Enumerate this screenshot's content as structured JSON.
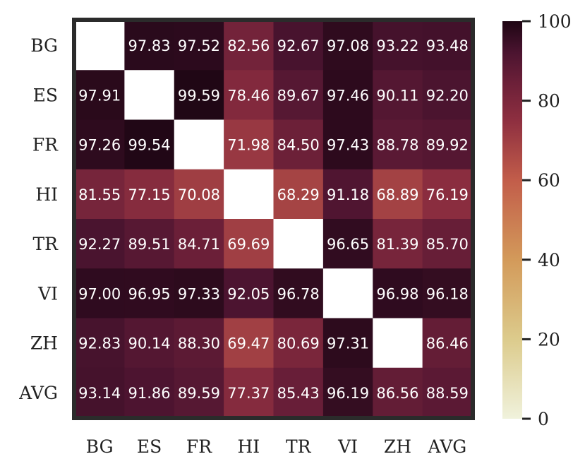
{
  "chart_data": {
    "type": "heatmap",
    "rows": [
      "BG",
      "ES",
      "FR",
      "HI",
      "TR",
      "VI",
      "ZH",
      "AVG"
    ],
    "columns": [
      "BG",
      "ES",
      "FR",
      "HI",
      "TR",
      "VI",
      "ZH",
      "AVG"
    ],
    "values": [
      [
        null,
        97.83,
        97.52,
        82.56,
        92.67,
        97.08,
        93.22,
        93.48
      ],
      [
        97.91,
        null,
        99.59,
        78.46,
        89.67,
        97.46,
        90.11,
        92.2
      ],
      [
        97.26,
        99.54,
        null,
        71.98,
        84.5,
        97.43,
        88.78,
        89.92
      ],
      [
        81.55,
        77.15,
        70.08,
        null,
        68.29,
        91.18,
        68.89,
        76.19
      ],
      [
        92.27,
        89.51,
        84.71,
        69.69,
        null,
        96.65,
        81.39,
        85.7
      ],
      [
        97.0,
        96.95,
        97.33,
        92.05,
        96.78,
        null,
        96.98,
        96.18
      ],
      [
        92.83,
        90.14,
        88.3,
        69.47,
        80.69,
        97.31,
        null,
        86.46
      ],
      [
        93.14,
        91.86,
        89.59,
        77.37,
        85.43,
        96.19,
        86.56,
        88.59
      ]
    ],
    "labels": [
      [
        "",
        "97.83",
        "97.52",
        "82.56",
        "92.67",
        "97.08",
        "93.22",
        "93.48"
      ],
      [
        "97.91",
        "",
        "99.59",
        "78.46",
        "89.67",
        "97.46",
        "90.11",
        "92.20"
      ],
      [
        "97.26",
        "99.54",
        "",
        "71.98",
        "84.50",
        "97.43",
        "88.78",
        "89.92"
      ],
      [
        "81.55",
        "77.15",
        "70.08",
        "",
        "68.29",
        "91.18",
        "68.89",
        "76.19"
      ],
      [
        "92.27",
        "89.51",
        "84.71",
        "69.69",
        "",
        "96.65",
        "81.39",
        "85.70"
      ],
      [
        "97.00",
        "96.95",
        "97.33",
        "92.05",
        "96.78",
        "",
        "96.98",
        "96.18"
      ],
      [
        "92.83",
        "90.14",
        "88.30",
        "69.47",
        "80.69",
        "97.31",
        "",
        "86.46"
      ],
      [
        "93.14",
        "91.86",
        "89.59",
        "77.37",
        "85.43",
        "96.19",
        "86.56",
        "88.59"
      ]
    ],
    "colorbar": {
      "range": [
        0,
        100
      ],
      "ticks": [
        "0",
        "20",
        "40",
        "60",
        "80",
        "100"
      ]
    },
    "colormap_stops": [
      [
        0,
        "#f0f2dc"
      ],
      [
        20,
        "#dccb8c"
      ],
      [
        40,
        "#d39a5a"
      ],
      [
        60,
        "#c25d4a"
      ],
      [
        75,
        "#8e2f40"
      ],
      [
        85,
        "#6a1f38"
      ],
      [
        92,
        "#4c1430"
      ],
      [
        100,
        "#1e0614"
      ]
    ],
    "frame_color": "#2b2b2b",
    "missing_color": "#ffffff"
  }
}
